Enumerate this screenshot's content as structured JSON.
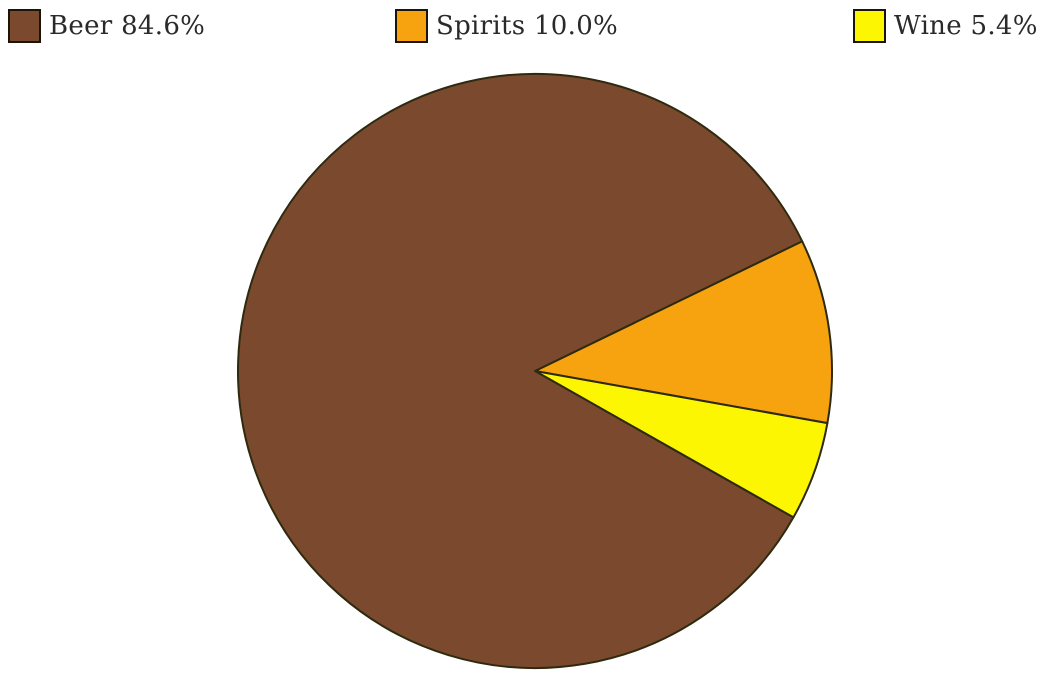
{
  "chart_data": {
    "type": "pie",
    "title": "",
    "slices": [
      {
        "label": "Beer 84.6%",
        "name": "Beer",
        "value": 84.6,
        "color": "#7b4a2e"
      },
      {
        "label": "Spirits 10.0%",
        "name": "Spirits",
        "value": 10.0,
        "color": "#f7a20f"
      },
      {
        "label": "Wine 5.4%",
        "name": "Wine",
        "value": 5.4,
        "color": "#fdf602"
      }
    ],
    "legend_position": "top",
    "outline_color": "#2e2a10"
  }
}
